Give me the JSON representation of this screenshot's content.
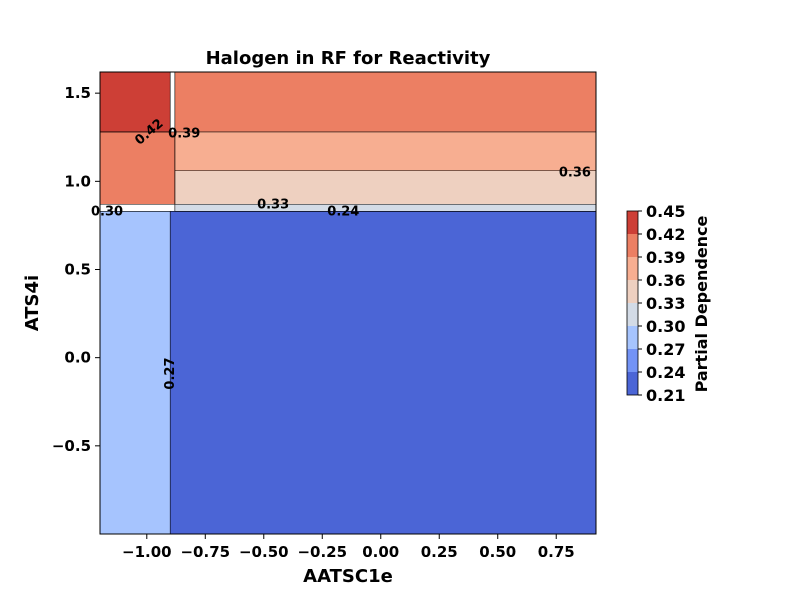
{
  "chart_data": {
    "type": "contour",
    "title": "Halogen in RF for Reactivity",
    "xlabel": "AATSC1e",
    "ylabel": "ATS4i",
    "xlim": [
      -1.2,
      0.92
    ],
    "ylim": [
      -1.0,
      1.62
    ],
    "x_ticks": [
      -1.0,
      -0.75,
      -0.5,
      -0.25,
      0.0,
      0.25,
      0.5,
      0.75
    ],
    "x_tick_labels": [
      "−1.00",
      "−0.75",
      "−0.50",
      "−0.25",
      "0.00",
      "0.25",
      "0.50",
      "0.75"
    ],
    "y_ticks": [
      -0.5,
      0.0,
      0.5,
      1.0,
      1.5
    ],
    "y_tick_labels": [
      "−0.5",
      "0.0",
      "0.5",
      "1.0",
      "1.5"
    ],
    "colorbar": {
      "label": "Partial Dependence",
      "levels": [
        0.21,
        0.24,
        0.27,
        0.3,
        0.33,
        0.36,
        0.39,
        0.42,
        0.45
      ],
      "tick_labels": [
        "0.21",
        "0.24",
        "0.27",
        "0.30",
        "0.33",
        "0.36",
        "0.39",
        "0.42",
        "0.45"
      ],
      "colors": [
        "#4b65d6",
        "#7393f5",
        "#a6c4fe",
        "#d3dbe6",
        "#eed0c0",
        "#f7ae91",
        "#ec7f63",
        "#cd3f36"
      ]
    },
    "regions": [
      {
        "x": [
          -1.2,
          -0.9
        ],
        "y": [
          -1.0,
          0.83
        ],
        "level_index": 2,
        "value_range": [
          0.27,
          0.3
        ]
      },
      {
        "x": [
          -0.9,
          0.92
        ],
        "y": [
          -1.0,
          0.83
        ],
        "level_index": 0,
        "value_range": [
          0.21,
          0.24
        ]
      },
      {
        "x": [
          -0.88,
          0.92
        ],
        "y": [
          0.83,
          0.87
        ],
        "level_index": 3,
        "value_range": [
          0.3,
          0.33
        ]
      },
      {
        "x": [
          -0.88,
          0.92
        ],
        "y": [
          0.87,
          1.06
        ],
        "level_index": 4,
        "value_range": [
          0.33,
          0.36
        ]
      },
      {
        "x": [
          -0.88,
          0.92
        ],
        "y": [
          1.06,
          1.28
        ],
        "level_index": 5,
        "value_range": [
          0.36,
          0.39
        ]
      },
      {
        "x": [
          -1.2,
          -0.88
        ],
        "y": [
          0.87,
          1.28
        ],
        "level_index": 6,
        "value_range": [
          0.39,
          0.42
        ]
      },
      {
        "x": [
          -0.88,
          0.92
        ],
        "y": [
          1.28,
          1.62
        ],
        "level_index": 6,
        "value_range": [
          0.39,
          0.42
        ]
      },
      {
        "x": [
          -1.2,
          -0.9
        ],
        "y": [
          1.28,
          1.62
        ],
        "level_index": 7,
        "value_range": [
          0.42,
          0.45
        ]
      }
    ],
    "contour_labels": [
      {
        "text": "0.42",
        "x": -0.99,
        "y": 1.28,
        "rotation": -40
      },
      {
        "text": "0.39",
        "x": -0.84,
        "y": 1.27,
        "rotation": 0
      },
      {
        "text": "0.36",
        "x": 0.83,
        "y": 1.05,
        "rotation": 0
      },
      {
        "text": "0.33",
        "x": -0.46,
        "y": 0.87,
        "rotation": 0
      },
      {
        "text": "0.24",
        "x": -0.16,
        "y": 0.83,
        "rotation": 0
      },
      {
        "text": "0.30",
        "x": -1.17,
        "y": 0.83,
        "rotation": 0
      },
      {
        "text": "0.27",
        "x": -0.9,
        "y": -0.09,
        "rotation": -90
      }
    ]
  }
}
